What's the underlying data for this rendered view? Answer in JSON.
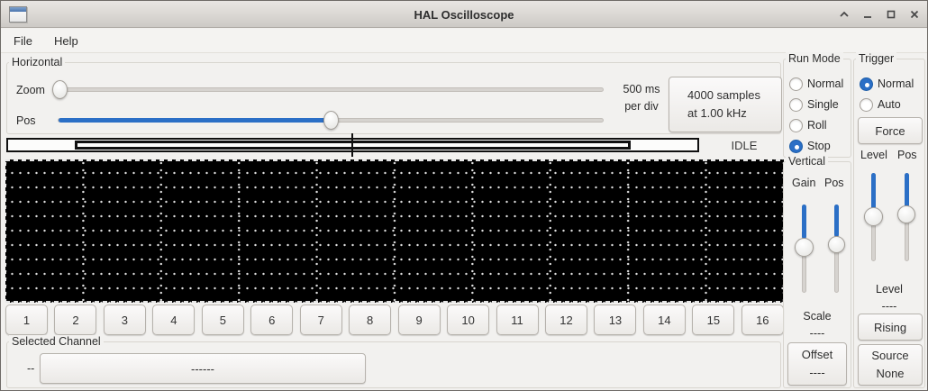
{
  "window": {
    "title": "HAL Oscilloscope"
  },
  "menu": {
    "file": "File",
    "help": "Help"
  },
  "horizontal": {
    "label": "Horizontal",
    "zoom_label": "Zoom",
    "pos_label": "Pos",
    "rate_line1": "500 ms",
    "rate_line2": "per div",
    "samples_line1": "4000 samples",
    "samples_line2": "at 1.00 kHz",
    "status": "IDLE"
  },
  "run_mode": {
    "label": "Run Mode",
    "options": [
      {
        "label": "Normal",
        "selected": false
      },
      {
        "label": "Single",
        "selected": false
      },
      {
        "label": "Roll",
        "selected": false
      },
      {
        "label": "Stop",
        "selected": true
      }
    ]
  },
  "trigger": {
    "label": "Trigger",
    "options": [
      {
        "label": "Normal",
        "selected": true
      },
      {
        "label": "Auto",
        "selected": false
      }
    ],
    "force_label": "Force",
    "level_label": "Level",
    "pos_label": "Pos",
    "level_caption": "Level",
    "level_value": "----",
    "edge_label": "Rising",
    "source_line1": "Source",
    "source_line2": "None"
  },
  "vertical": {
    "label": "Vertical",
    "gain_label": "Gain",
    "pos_label": "Pos",
    "scale_caption": "Scale",
    "scale_value": "----",
    "offset_line1": "Offset",
    "offset_line2": "----"
  },
  "channels": {
    "buttons": [
      "1",
      "2",
      "3",
      "4",
      "5",
      "6",
      "7",
      "8",
      "9",
      "10",
      "11",
      "12",
      "13",
      "14",
      "15",
      "16"
    ]
  },
  "selected_channel": {
    "label": "Selected Channel",
    "value": "--",
    "button_label": "------"
  },
  "colors": {
    "accent": "#2b6fc6",
    "scope_bg": "#000000",
    "grid_dot": "#e0e0e0"
  },
  "icons": {
    "app": "window-icon",
    "shade": "chevron-up-icon",
    "minimize": "minimize-icon",
    "maximize": "maximize-icon",
    "close": "close-icon"
  }
}
